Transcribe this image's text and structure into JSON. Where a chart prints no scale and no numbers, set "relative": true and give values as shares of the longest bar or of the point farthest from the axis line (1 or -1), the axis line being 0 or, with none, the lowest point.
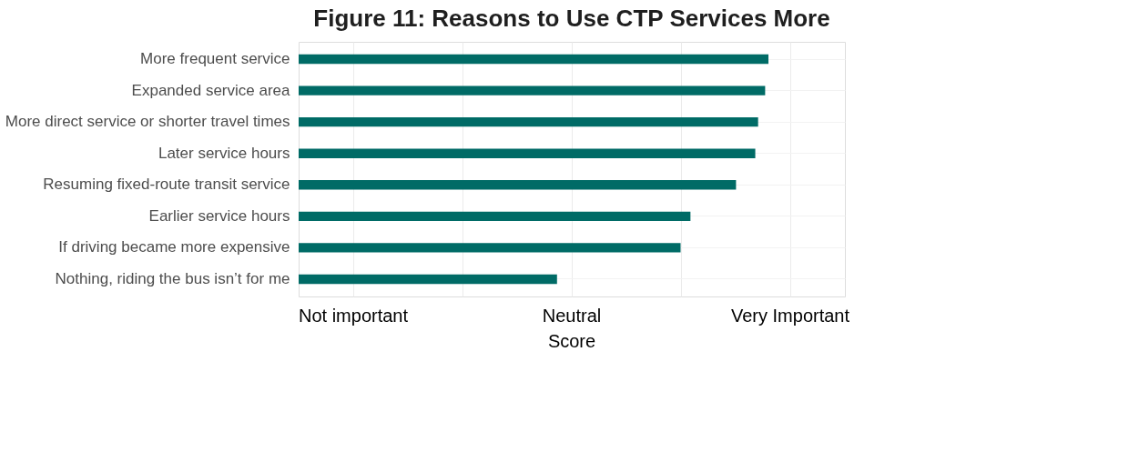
{
  "chart_data": {
    "type": "bar",
    "orientation": "horizontal",
    "relative": true,
    "title": "Figure 11: Reasons to Use CTP Services More",
    "xlabel": "Score",
    "categories": [
      "More frequent service",
      "Expanded service area",
      "More direct service or shorter travel times",
      "Later service hours",
      "Resuming fixed-route transit service",
      "Earlier service hours",
      "If driving became more expensive",
      "Nothing, riding the bus isn’t for me"
    ],
    "values": [
      1,
      0.993,
      0.978,
      0.972,
      0.931,
      0.834,
      0.813,
      0.55
    ],
    "color": "#006b66",
    "annotations": [
      "Not important",
      "Neutral",
      "Very Important"
    ],
    "grid": true
  }
}
